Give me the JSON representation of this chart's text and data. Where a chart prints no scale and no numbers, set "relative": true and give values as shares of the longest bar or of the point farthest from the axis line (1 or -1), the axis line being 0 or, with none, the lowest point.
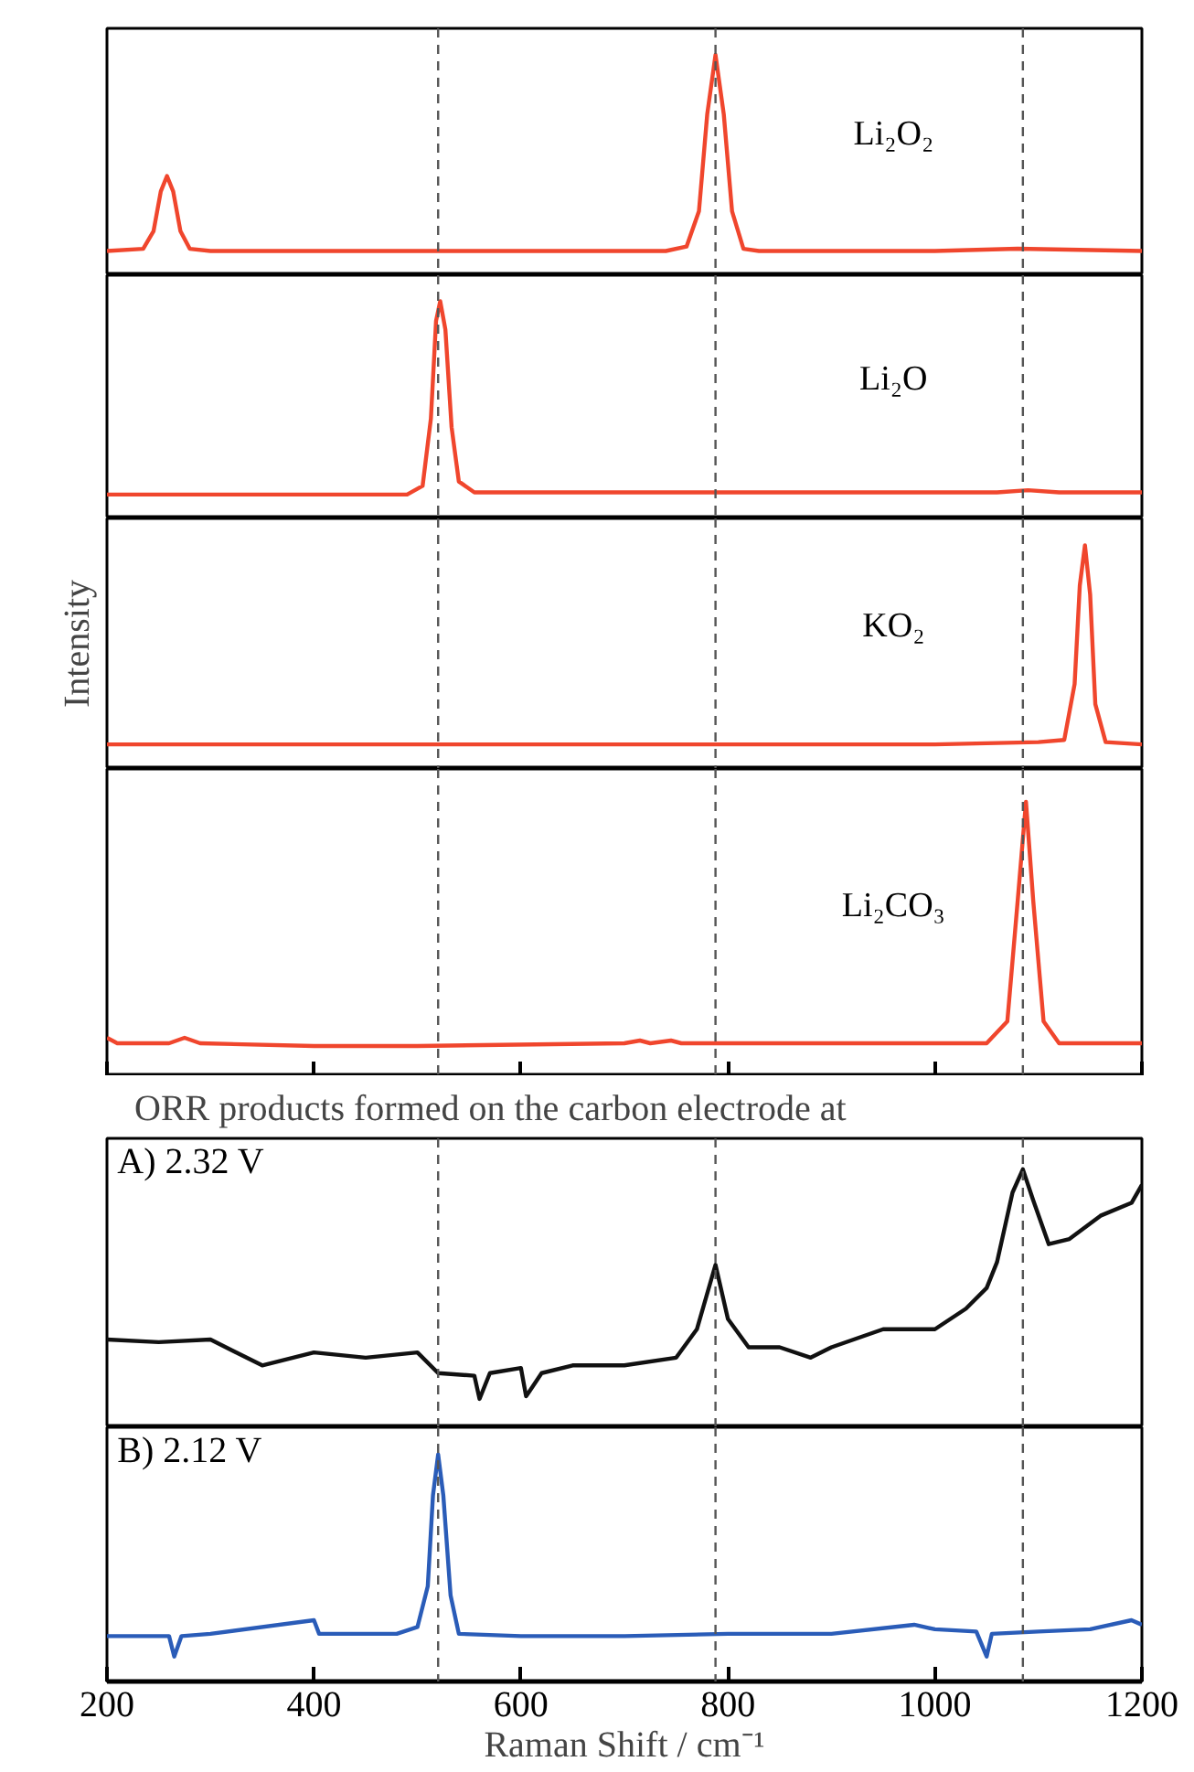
{
  "chart_data": [
    {
      "type": "line",
      "relative": true,
      "xlim": [
        200,
        1200
      ],
      "tick_labels": false,
      "x": [
        200,
        235,
        245,
        252,
        258,
        264,
        271,
        280,
        300,
        500,
        740,
        760,
        772,
        780,
        788,
        796,
        804,
        815,
        830,
        1000,
        1080,
        1200
      ],
      "series": [
        {
          "name": "Li₂O₂",
          "color": "#f0462d",
          "values": [
            0.11,
            0.12,
            0.2,
            0.38,
            0.45,
            0.38,
            0.2,
            0.12,
            0.11,
            0.11,
            0.11,
            0.13,
            0.29,
            0.73,
            1,
            0.73,
            0.29,
            0.12,
            0.11,
            0.11,
            0.12,
            0.11
          ]
        }
      ],
      "ref_lines": [
        {
          "axis": "x",
          "value": 520,
          "line_style": "dashed",
          "color": "#555555"
        },
        {
          "axis": "x",
          "value": 788,
          "line_style": "dashed",
          "color": "#555555"
        },
        {
          "axis": "x",
          "value": 1085,
          "line_style": "dashed",
          "color": "#555555"
        }
      ]
    },
    {
      "type": "line",
      "relative": true,
      "xlim": [
        200,
        1200
      ],
      "tick_labels": false,
      "x": [
        200,
        490,
        505,
        513,
        518,
        522,
        527,
        533,
        540,
        555,
        600,
        800,
        1060,
        1090,
        1120,
        1200
      ],
      "series": [
        {
          "name": "Li₂O",
          "color": "#f0462d",
          "values": [
            0.11,
            0.11,
            0.15,
            0.46,
            0.91,
            1,
            0.87,
            0.42,
            0.17,
            0.12,
            0.12,
            0.12,
            0.12,
            0.13,
            0.12,
            0.12
          ]
        }
      ],
      "ref_lines": [
        {
          "axis": "x",
          "value": 520,
          "line_style": "dashed",
          "color": "#555555"
        },
        {
          "axis": "x",
          "value": 788,
          "line_style": "dashed",
          "color": "#555555"
        },
        {
          "axis": "x",
          "value": 1085,
          "line_style": "dashed",
          "color": "#555555"
        }
      ]
    },
    {
      "type": "line",
      "relative": true,
      "xlim": [
        200,
        1200
      ],
      "tick_labels": false,
      "ylabel": "Intensity",
      "x": [
        200,
        600,
        1000,
        1100,
        1125,
        1135,
        1140,
        1145,
        1150,
        1155,
        1165,
        1200
      ],
      "series": [
        {
          "name": "KO₂",
          "color": "#f0462d",
          "values": [
            0.11,
            0.11,
            0.11,
            0.12,
            0.13,
            0.38,
            0.82,
            1,
            0.78,
            0.29,
            0.12,
            0.11
          ]
        }
      ],
      "ref_lines": [
        {
          "axis": "x",
          "value": 520,
          "line_style": "dashed",
          "color": "#555555"
        },
        {
          "axis": "x",
          "value": 788,
          "line_style": "dashed",
          "color": "#555555"
        },
        {
          "axis": "x",
          "value": 1085,
          "line_style": "dashed",
          "color": "#555555"
        }
      ]
    },
    {
      "type": "line",
      "relative": true,
      "xlim": [
        200,
        1200
      ],
      "xticks": [
        200,
        400,
        600,
        800,
        1000,
        1200
      ],
      "tick_labels": false,
      "x": [
        200,
        210,
        260,
        275,
        290,
        400,
        500,
        700,
        715,
        725,
        745,
        755,
        900,
        1050,
        1070,
        1080,
        1088,
        1095,
        1105,
        1120,
        1200
      ],
      "series": [
        {
          "name": "Li₂CO₃",
          "color": "#f0462d",
          "values": [
            0.14,
            0.12,
            0.12,
            0.14,
            0.12,
            0.11,
            0.11,
            0.12,
            0.13,
            0.12,
            0.13,
            0.12,
            0.12,
            0.12,
            0.2,
            0.64,
            1,
            0.64,
            0.2,
            0.12,
            0.12
          ]
        }
      ],
      "ref_lines": [
        {
          "axis": "x",
          "value": 520,
          "line_style": "dashed",
          "color": "#555555"
        },
        {
          "axis": "x",
          "value": 788,
          "line_style": "dashed",
          "color": "#555555"
        },
        {
          "axis": "x",
          "value": 1085,
          "line_style": "dashed",
          "color": "#555555"
        }
      ]
    },
    {
      "type": "line",
      "relative": true,
      "xlim": [
        200,
        1200
      ],
      "tick_labels": false,
      "title": "ORR products formed on the carbon electrode at",
      "x": [
        200,
        250,
        300,
        350,
        400,
        450,
        500,
        520,
        555,
        560,
        570,
        600,
        605,
        620,
        650,
        700,
        750,
        770,
        788,
        800,
        820,
        850,
        880,
        900,
        950,
        1000,
        1030,
        1050,
        1060,
        1075,
        1085,
        1095,
        1110,
        1130,
        1160,
        1190,
        1200
      ],
      "series": [
        {
          "name": "A) 2.32 V",
          "color": "#111111",
          "values": [
            0.34,
            0.33,
            0.34,
            0.24,
            0.29,
            0.27,
            0.29,
            0.21,
            0.2,
            0.11,
            0.21,
            0.23,
            0.12,
            0.21,
            0.24,
            0.24,
            0.27,
            0.38,
            0.63,
            0.42,
            0.31,
            0.31,
            0.27,
            0.31,
            0.38,
            0.38,
            0.46,
            0.54,
            0.64,
            0.91,
            1,
            0.88,
            0.71,
            0.73,
            0.82,
            0.87,
            0.94
          ]
        }
      ],
      "ref_lines": [
        {
          "axis": "x",
          "value": 520,
          "line_style": "dashed",
          "color": "#555555"
        },
        {
          "axis": "x",
          "value": 788,
          "line_style": "dashed",
          "color": "#555555"
        },
        {
          "axis": "x",
          "value": 1085,
          "line_style": "dashed",
          "color": "#555555"
        }
      ]
    },
    {
      "type": "line",
      "relative": true,
      "xlim": [
        200,
        1200
      ],
      "xticks": [
        200,
        400,
        600,
        800,
        1000,
        1200
      ],
      "tick_labels": "x",
      "xlabel": "Raman Shift / cm⁻¹",
      "x": [
        200,
        260,
        265,
        272,
        300,
        400,
        405,
        480,
        500,
        510,
        515,
        520,
        525,
        532,
        540,
        600,
        700,
        800,
        900,
        980,
        1000,
        1040,
        1050,
        1055,
        1100,
        1150,
        1190,
        1200
      ],
      "series": [
        {
          "name": "B) 2.12 V",
          "color": "#2a5cb8",
          "values": [
            0.2,
            0.2,
            0.11,
            0.2,
            0.21,
            0.27,
            0.21,
            0.21,
            0.24,
            0.42,
            0.82,
            1,
            0.82,
            0.38,
            0.21,
            0.2,
            0.2,
            0.21,
            0.21,
            0.25,
            0.23,
            0.22,
            0.11,
            0.21,
            0.22,
            0.23,
            0.27,
            0.25
          ]
        }
      ],
      "ref_lines": [
        {
          "axis": "x",
          "value": 520,
          "line_style": "dashed",
          "color": "#555555"
        },
        {
          "axis": "x",
          "value": 788,
          "line_style": "dashed",
          "color": "#555555"
        },
        {
          "axis": "x",
          "value": 1085,
          "line_style": "dashed",
          "color": "#555555"
        }
      ]
    }
  ]
}
